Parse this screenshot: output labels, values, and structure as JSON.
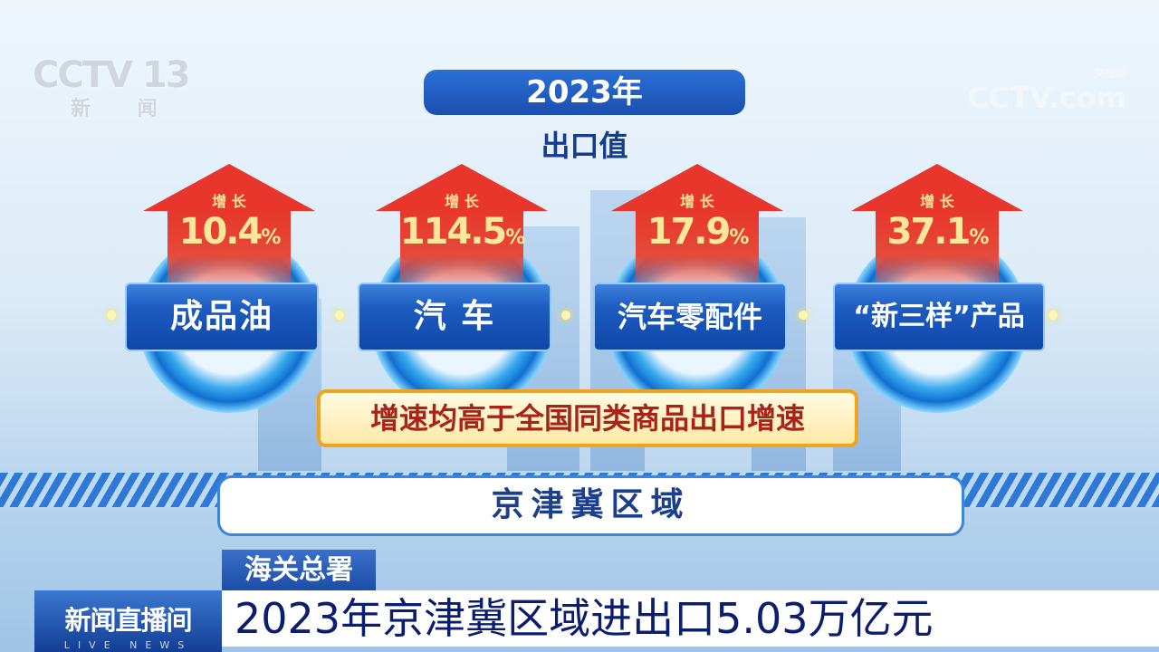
{
  "watermarks": {
    "channel_logo": "CCTV 13",
    "channel_sub": "新 闻",
    "site_logo": "CCTV.com",
    "site_sub": "央视网"
  },
  "title": "2023年",
  "subtitle": "出口值",
  "items": [
    {
      "growth_label": "增 长",
      "value": "10.4",
      "unit": "%",
      "name": "成品油"
    },
    {
      "growth_label": "增 长",
      "value": "114.5",
      "unit": "%",
      "name": "汽 车"
    },
    {
      "growth_label": "增 长",
      "value": "17.9",
      "unit": "%",
      "name": "汽车零配件"
    },
    {
      "growth_label": "增 长",
      "value": "37.1",
      "unit": "%",
      "name": "“新三样”产品"
    }
  ],
  "note": "增速均高于全国同类商品出口增速",
  "region": "京津冀区域",
  "lower_third": {
    "source": "海关总署",
    "program": "新闻直播间",
    "program_en": "LIVE NEWS",
    "headline": "2023年京津冀区域进出口5.03万亿元"
  },
  "colors": {
    "arrow": "#e8362c",
    "accent_blue": "#1d5cc0",
    "value_yellow": "#ffe79a",
    "note_border": "#f2a31e"
  }
}
